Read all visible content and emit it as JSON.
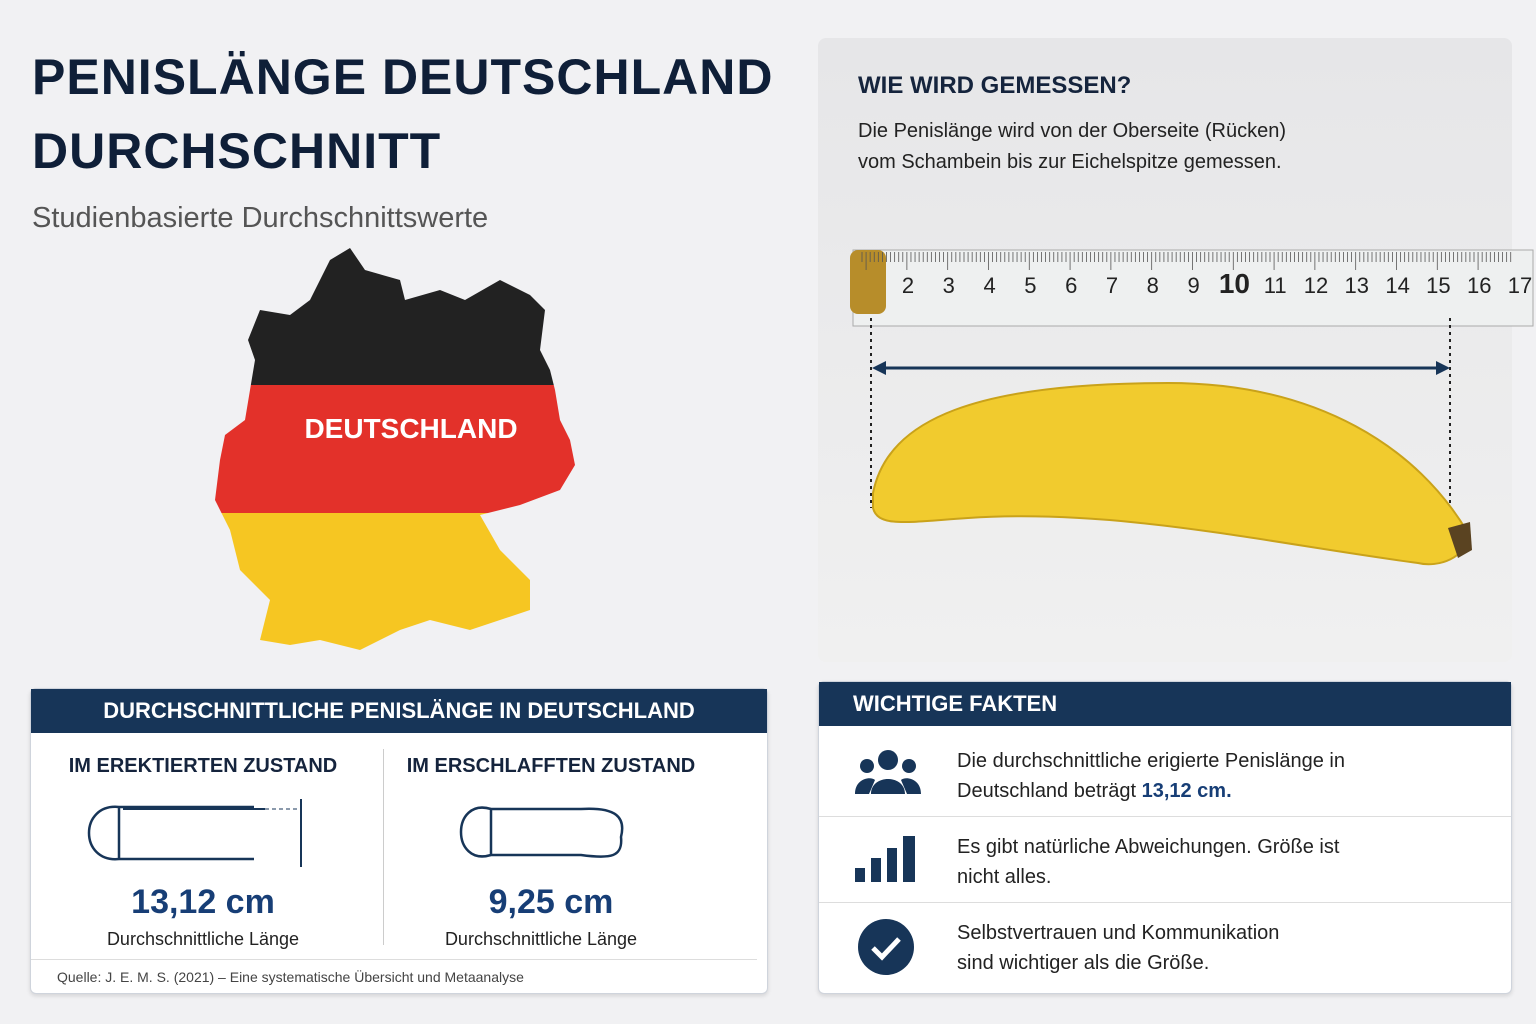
{
  "header": {
    "title": "PENISLÄNGE DEUTSCHLAND DURCHSCHNITT",
    "subtitle": "Studienbasierte Durchschnittswerte"
  },
  "map": {
    "label": "DEUTSCHLAND"
  },
  "measure": {
    "title": "WIE WIRD GEMESSEN?",
    "text": "Die Penislänge wird von der Oberseite (Rücken) vom Schambein bis zur Eichelspitze gemessen.",
    "ruler": [
      2,
      3,
      4,
      5,
      6,
      7,
      8,
      9,
      10,
      11,
      12,
      13,
      14,
      15,
      16,
      17
    ]
  },
  "stats": {
    "title": "DURCHSCHNITTLICHE PENISLÄNGE IN DEUTSCHLAND",
    "erect": {
      "label": "IM EREKTIERTEN ZUSTAND",
      "value": "13,12 cm",
      "caption": "Durchschnittliche Länge"
    },
    "flaccid": {
      "label": "IM ERSCHLAFFTEN ZUSTAND",
      "value": "9,25 cm",
      "caption": "Durchschnittliche Länge"
    },
    "source": "Quelle: J. E. M. S. (2021) – Eine systematische Übersicht und Metaanalyse"
  },
  "facts": {
    "title": "WICHTIGE FAKTEN",
    "items": [
      {
        "text": "Die durchschnittliche erigierte Penislänge in Deutschland beträgt",
        "highlight": "13,12 cm",
        "suffix": "."
      },
      {
        "text": "Es gibt natürliche Abweichungen. Größe ist nicht alles."
      },
      {
        "text": "Selbstvertrauen und Kommunikation sind wichtiger als die Größe."
      }
    ]
  }
}
